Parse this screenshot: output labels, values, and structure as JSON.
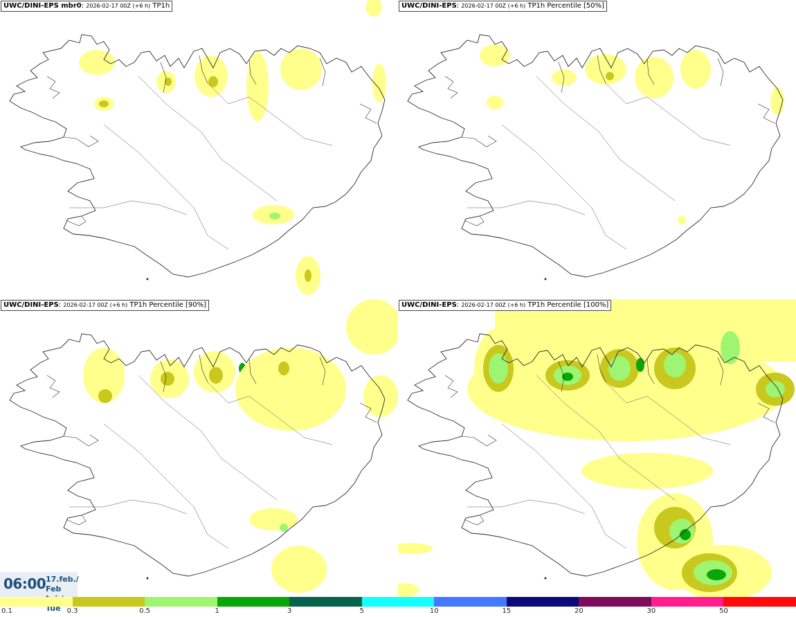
{
  "panels": [
    {
      "id": "mbr0",
      "model": "UWC/DINI-EPS mbr0",
      "run": "2026-02-17 00Z (+6 h)",
      "field": "TP1h"
    },
    {
      "id": "p50",
      "model": "UWC/DINI-EPS",
      "run": "2026-02-17 00Z (+6 h)",
      "field": "TP1h Percentile [50%]"
    },
    {
      "id": "p90",
      "model": "UWC/DINI-EPS",
      "run": "2026-02-17 00Z (+6 h)",
      "field": "TP1h Percentile [90%]"
    },
    {
      "id": "p100",
      "model": "UWC/DINI-EPS",
      "run": "2026-02-17 00Z (+6 h)",
      "field": "TP1h Percentile [100%]"
    }
  ],
  "valid_time": {
    "time": "06:00",
    "date_line1": "17.feb./ Feb",
    "date_line2": "Þri./ Tue"
  },
  "legend": {
    "ticks": [
      "0.1",
      "0.3",
      "0.5",
      "1",
      "3",
      "5",
      "10",
      "15",
      "20",
      "30",
      "50"
    ],
    "colors": [
      "#ffff8c",
      "#c8c81e",
      "#9ef572",
      "#0aa50a",
      "#07634b",
      "#14ffff",
      "#4678ff",
      "#0a0a78",
      "#7d0a5a",
      "#ff1e8c",
      "#ff0a0a"
    ]
  }
}
